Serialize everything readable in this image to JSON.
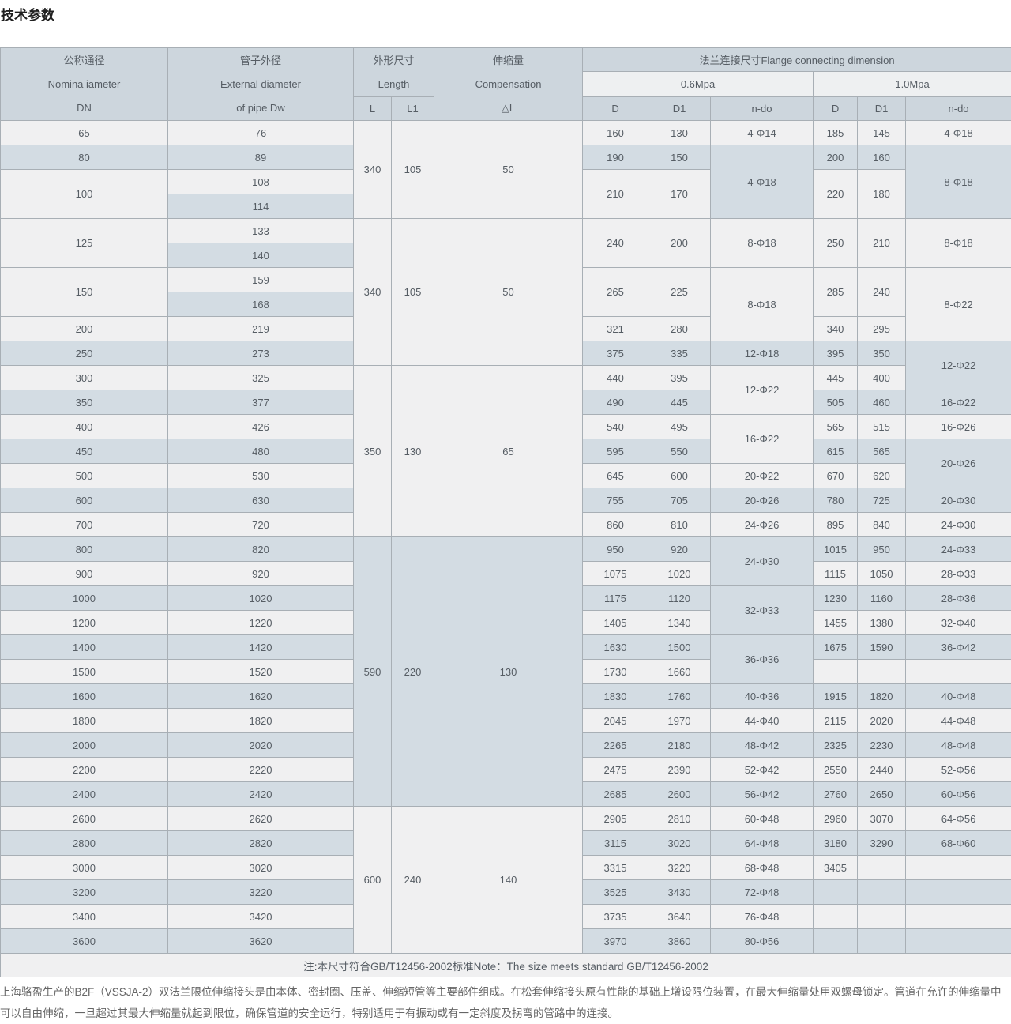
{
  "page": {
    "title": "技术参数"
  },
  "colors": {
    "header_blue": "#cdd6dd",
    "header_light": "#eef0f1",
    "row_light": "#f0f0f1",
    "row_blue": "#d3dce3",
    "border": "#a8afb5",
    "text": "#565d64"
  },
  "table": {
    "header": {
      "dn": [
        "公称通径",
        "Nomina iameter",
        "DN"
      ],
      "dw": [
        "管子外径",
        "External diameter",
        "of pipe Dw"
      ],
      "length": [
        "外形尺寸",
        "Length"
      ],
      "length_cols": [
        "L",
        "L1"
      ],
      "compensation": [
        "伸缩量",
        "Compensation",
        "△L"
      ],
      "flange": "法兰连接尺寸Flange connecting dimension",
      "pressures": [
        "0.6Mpa",
        "1.0Mpa"
      ],
      "dim_cols": [
        "D",
        "D1",
        "n-do"
      ]
    },
    "rows": [
      [
        {
          "n": "dn",
          "v": "65"
        },
        {
          "n": "dw",
          "v": "76"
        },
        {
          "n": "l",
          "v": "340",
          "rs": 4
        },
        {
          "n": "l1",
          "v": "105",
          "rs": 4
        },
        {
          "n": "dl",
          "v": "50",
          "rs": 4
        },
        {
          "n": "d06",
          "v": "160"
        },
        {
          "n": "d106",
          "v": "130"
        },
        {
          "n": "ndo06",
          "v": "4-Φ14"
        },
        {
          "n": "d10",
          "v": "185"
        },
        {
          "n": "d110",
          "v": "145"
        },
        {
          "n": "ndo10",
          "v": "4-Φ18"
        }
      ],
      [
        {
          "n": "dn",
          "v": "80"
        },
        {
          "n": "dw",
          "v": "89"
        },
        {
          "n": "d06",
          "v": "190"
        },
        {
          "n": "d106",
          "v": "150"
        },
        {
          "n": "ndo06",
          "v": "4-Φ18",
          "rs": 3
        },
        {
          "n": "d10",
          "v": "200"
        },
        {
          "n": "d110",
          "v": "160"
        },
        {
          "n": "ndo10",
          "v": "8-Φ18",
          "rs": 3
        }
      ],
      [
        {
          "n": "dn",
          "v": "100",
          "rs": 2
        },
        {
          "n": "dw",
          "v": "108"
        },
        {
          "n": "d06",
          "v": "210",
          "rs": 2
        },
        {
          "n": "d106",
          "v": "170",
          "rs": 2
        },
        {
          "n": "d10",
          "v": "220",
          "rs": 2
        },
        {
          "n": "d110",
          "v": "180",
          "rs": 2
        }
      ],
      [
        {
          "n": "dw",
          "v": "114"
        }
      ],
      [
        {
          "n": "dn",
          "v": "125",
          "rs": 2
        },
        {
          "n": "dw",
          "v": "133"
        },
        {
          "n": "l",
          "v": "340",
          "rs": 6
        },
        {
          "n": "l1",
          "v": "105",
          "rs": 6
        },
        {
          "n": "dl",
          "v": "50",
          "rs": 6
        },
        {
          "n": "d06",
          "v": "240",
          "rs": 2
        },
        {
          "n": "d106",
          "v": "200",
          "rs": 2
        },
        {
          "n": "ndo06",
          "v": "8-Φ18",
          "rs": 2
        },
        {
          "n": "d10",
          "v": "250",
          "rs": 2
        },
        {
          "n": "d110",
          "v": "210",
          "rs": 2
        },
        {
          "n": "ndo10",
          "v": "8-Φ18",
          "rs": 2
        }
      ],
      [
        {
          "n": "dw",
          "v": "140"
        }
      ],
      [
        {
          "n": "dn",
          "v": "150",
          "rs": 2
        },
        {
          "n": "dw",
          "v": "159"
        },
        {
          "n": "d06",
          "v": "265",
          "rs": 2
        },
        {
          "n": "d106",
          "v": "225",
          "rs": 2
        },
        {
          "n": "ndo06",
          "v": "8-Φ18",
          "rs": 3
        },
        {
          "n": "d10",
          "v": "285",
          "rs": 2
        },
        {
          "n": "d110",
          "v": "240",
          "rs": 2
        },
        {
          "n": "ndo10",
          "v": "8-Φ22",
          "rs": 3
        }
      ],
      [
        {
          "n": "dw",
          "v": "168"
        }
      ],
      [
        {
          "n": "dn",
          "v": "200"
        },
        {
          "n": "dw",
          "v": "219"
        },
        {
          "n": "d06",
          "v": "321"
        },
        {
          "n": "d106",
          "v": "280"
        },
        {
          "n": "d10",
          "v": "340"
        },
        {
          "n": "d110",
          "v": "295"
        }
      ],
      [
        {
          "n": "dn",
          "v": "250"
        },
        {
          "n": "dw",
          "v": "273"
        },
        {
          "n": "d06",
          "v": "375"
        },
        {
          "n": "d106",
          "v": "335"
        },
        {
          "n": "ndo06",
          "v": "12-Φ18"
        },
        {
          "n": "d10",
          "v": "395"
        },
        {
          "n": "d110",
          "v": "350"
        },
        {
          "n": "ndo10",
          "v": "12-Φ22",
          "rs": 2
        }
      ],
      [
        {
          "n": "dn",
          "v": "300"
        },
        {
          "n": "dw",
          "v": "325"
        },
        {
          "n": "l",
          "v": "350",
          "rs": 7
        },
        {
          "n": "l1",
          "v": "130",
          "rs": 7
        },
        {
          "n": "dl",
          "v": "65",
          "rs": 7
        },
        {
          "n": "d06",
          "v": "440"
        },
        {
          "n": "d106",
          "v": "395"
        },
        {
          "n": "ndo06",
          "v": "12-Φ22",
          "rs": 2
        },
        {
          "n": "d10",
          "v": "445"
        },
        {
          "n": "d110",
          "v": "400"
        }
      ],
      [
        {
          "n": "dn",
          "v": "350"
        },
        {
          "n": "dw",
          "v": "377"
        },
        {
          "n": "d06",
          "v": "490"
        },
        {
          "n": "d106",
          "v": "445"
        },
        {
          "n": "d10",
          "v": "505"
        },
        {
          "n": "d110",
          "v": "460"
        },
        {
          "n": "ndo10",
          "v": "16-Φ22"
        }
      ],
      [
        {
          "n": "dn",
          "v": "400"
        },
        {
          "n": "dw",
          "v": "426"
        },
        {
          "n": "d06",
          "v": "540"
        },
        {
          "n": "d106",
          "v": "495"
        },
        {
          "n": "ndo06",
          "v": "16-Φ22",
          "rs": 2
        },
        {
          "n": "d10",
          "v": "565"
        },
        {
          "n": "d110",
          "v": "515"
        },
        {
          "n": "ndo10",
          "v": "16-Φ26"
        }
      ],
      [
        {
          "n": "dn",
          "v": "450"
        },
        {
          "n": "dw",
          "v": "480"
        },
        {
          "n": "d06",
          "v": "595"
        },
        {
          "n": "d106",
          "v": "550"
        },
        {
          "n": "d10",
          "v": "615"
        },
        {
          "n": "d110",
          "v": "565"
        },
        {
          "n": "ndo10",
          "v": "20-Φ26",
          "rs": 2
        }
      ],
      [
        {
          "n": "dn",
          "v": "500"
        },
        {
          "n": "dw",
          "v": "530"
        },
        {
          "n": "d06",
          "v": "645"
        },
        {
          "n": "d106",
          "v": "600"
        },
        {
          "n": "ndo06",
          "v": "20-Φ22"
        },
        {
          "n": "d10",
          "v": "670"
        },
        {
          "n": "d110",
          "v": "620"
        }
      ],
      [
        {
          "n": "dn",
          "v": "600"
        },
        {
          "n": "dw",
          "v": "630"
        },
        {
          "n": "d06",
          "v": "755"
        },
        {
          "n": "d106",
          "v": "705"
        },
        {
          "n": "ndo06",
          "v": "20-Φ26"
        },
        {
          "n": "d10",
          "v": "780"
        },
        {
          "n": "d110",
          "v": "725"
        },
        {
          "n": "ndo10",
          "v": "20-Φ30"
        }
      ],
      [
        {
          "n": "dn",
          "v": "700"
        },
        {
          "n": "dw",
          "v": "720"
        },
        {
          "n": "d06",
          "v": "860"
        },
        {
          "n": "d106",
          "v": "810"
        },
        {
          "n": "ndo06",
          "v": "24-Φ26"
        },
        {
          "n": "d10",
          "v": "895"
        },
        {
          "n": "d110",
          "v": "840"
        },
        {
          "n": "ndo10",
          "v": "24-Φ30"
        }
      ],
      [
        {
          "n": "dn",
          "v": "800"
        },
        {
          "n": "dw",
          "v": "820"
        },
        {
          "n": "l",
          "v": "590",
          "rs": 11
        },
        {
          "n": "l1",
          "v": "220",
          "rs": 11
        },
        {
          "n": "dl",
          "v": "130",
          "rs": 11
        },
        {
          "n": "d06",
          "v": "950"
        },
        {
          "n": "d106",
          "v": "920"
        },
        {
          "n": "ndo06",
          "v": "24-Φ30",
          "rs": 2
        },
        {
          "n": "d10",
          "v": "1015"
        },
        {
          "n": "d110",
          "v": "950"
        },
        {
          "n": "ndo10",
          "v": "24-Φ33"
        }
      ],
      [
        {
          "n": "dn",
          "v": "900"
        },
        {
          "n": "dw",
          "v": "920"
        },
        {
          "n": "d06",
          "v": "1075"
        },
        {
          "n": "d106",
          "v": "1020"
        },
        {
          "n": "d10",
          "v": "1115"
        },
        {
          "n": "d110",
          "v": "1050"
        },
        {
          "n": "ndo10",
          "v": "28-Φ33"
        }
      ],
      [
        {
          "n": "dn",
          "v": "1000"
        },
        {
          "n": "dw",
          "v": "1020"
        },
        {
          "n": "d06",
          "v": "1175"
        },
        {
          "n": "d106",
          "v": "1120"
        },
        {
          "n": "ndo06",
          "v": "32-Φ33",
          "rs": 2
        },
        {
          "n": "d10",
          "v": "1230"
        },
        {
          "n": "d110",
          "v": "1160"
        },
        {
          "n": "ndo10",
          "v": "28-Φ36"
        }
      ],
      [
        {
          "n": "dn",
          "v": "1200"
        },
        {
          "n": "dw",
          "v": "1220"
        },
        {
          "n": "d06",
          "v": "1405"
        },
        {
          "n": "d106",
          "v": "1340"
        },
        {
          "n": "d10",
          "v": "1455"
        },
        {
          "n": "d110",
          "v": "1380"
        },
        {
          "n": "ndo10",
          "v": "32-Φ40"
        }
      ],
      [
        {
          "n": "dn",
          "v": "1400"
        },
        {
          "n": "dw",
          "v": "1420"
        },
        {
          "n": "d06",
          "v": "1630"
        },
        {
          "n": "d106",
          "v": "1500"
        },
        {
          "n": "ndo06",
          "v": "36-Φ36",
          "rs": 2
        },
        {
          "n": "d10",
          "v": "1675"
        },
        {
          "n": "d110",
          "v": "1590"
        },
        {
          "n": "ndo10",
          "v": "36-Φ42"
        }
      ],
      [
        {
          "n": "dn",
          "v": "1500"
        },
        {
          "n": "dw",
          "v": "1520"
        },
        {
          "n": "d06",
          "v": "1730"
        },
        {
          "n": "d106",
          "v": "1660"
        },
        {
          "n": "d10",
          "v": ""
        },
        {
          "n": "d110",
          "v": ""
        },
        {
          "n": "ndo10",
          "v": ""
        }
      ],
      [
        {
          "n": "dn",
          "v": "1600"
        },
        {
          "n": "dw",
          "v": "1620"
        },
        {
          "n": "d06",
          "v": "1830"
        },
        {
          "n": "d106",
          "v": "1760"
        },
        {
          "n": "ndo06",
          "v": "40-Φ36"
        },
        {
          "n": "d10",
          "v": "1915"
        },
        {
          "n": "d110",
          "v": "1820"
        },
        {
          "n": "ndo10",
          "v": "40-Φ48"
        }
      ],
      [
        {
          "n": "dn",
          "v": "1800"
        },
        {
          "n": "dw",
          "v": "1820"
        },
        {
          "n": "d06",
          "v": "2045"
        },
        {
          "n": "d106",
          "v": "1970"
        },
        {
          "n": "ndo06",
          "v": "44-Φ40"
        },
        {
          "n": "d10",
          "v": "2115"
        },
        {
          "n": "d110",
          "v": "2020"
        },
        {
          "n": "ndo10",
          "v": "44-Φ48"
        }
      ],
      [
        {
          "n": "dn",
          "v": "2000"
        },
        {
          "n": "dw",
          "v": "2020"
        },
        {
          "n": "d06",
          "v": "2265"
        },
        {
          "n": "d106",
          "v": "2180"
        },
        {
          "n": "ndo06",
          "v": "48-Φ42"
        },
        {
          "n": "d10",
          "v": "2325"
        },
        {
          "n": "d110",
          "v": "2230"
        },
        {
          "n": "ndo10",
          "v": "48-Φ48"
        }
      ],
      [
        {
          "n": "dn",
          "v": "2200"
        },
        {
          "n": "dw",
          "v": "2220"
        },
        {
          "n": "d06",
          "v": "2475"
        },
        {
          "n": "d106",
          "v": "2390"
        },
        {
          "n": "ndo06",
          "v": "52-Φ42"
        },
        {
          "n": "d10",
          "v": "2550"
        },
        {
          "n": "d110",
          "v": "2440"
        },
        {
          "n": "ndo10",
          "v": "52-Φ56"
        }
      ],
      [
        {
          "n": "dn",
          "v": "2400"
        },
        {
          "n": "dw",
          "v": "2420"
        },
        {
          "n": "d06",
          "v": "2685"
        },
        {
          "n": "d106",
          "v": "2600"
        },
        {
          "n": "ndo06",
          "v": "56-Φ42"
        },
        {
          "n": "d10",
          "v": "2760"
        },
        {
          "n": "d110",
          "v": "2650"
        },
        {
          "n": "ndo10",
          "v": "60-Φ56"
        }
      ],
      [
        {
          "n": "dn",
          "v": "2600"
        },
        {
          "n": "dw",
          "v": "2620"
        },
        {
          "n": "l",
          "v": "600",
          "rs": 6
        },
        {
          "n": "l1",
          "v": "240",
          "rs": 6
        },
        {
          "n": "dl",
          "v": "140",
          "rs": 6
        },
        {
          "n": "d06",
          "v": "2905"
        },
        {
          "n": "d106",
          "v": "2810"
        },
        {
          "n": "ndo06",
          "v": "60-Φ48"
        },
        {
          "n": "d10",
          "v": "2960"
        },
        {
          "n": "d110",
          "v": "3070"
        },
        {
          "n": "ndo10",
          "v": "64-Φ56"
        }
      ],
      [
        {
          "n": "dn",
          "v": "2800"
        },
        {
          "n": "dw",
          "v": "2820"
        },
        {
          "n": "d06",
          "v": "3115"
        },
        {
          "n": "d106",
          "v": "3020"
        },
        {
          "n": "ndo06",
          "v": "64-Φ48"
        },
        {
          "n": "d10",
          "v": "3180"
        },
        {
          "n": "d110",
          "v": "3290"
        },
        {
          "n": "ndo10",
          "v": "68-Φ60"
        }
      ],
      [
        {
          "n": "dn",
          "v": "3000"
        },
        {
          "n": "dw",
          "v": "3020"
        },
        {
          "n": "d06",
          "v": "3315"
        },
        {
          "n": "d106",
          "v": "3220"
        },
        {
          "n": "ndo06",
          "v": "68-Φ48"
        },
        {
          "n": "d10",
          "v": "3405"
        },
        {
          "n": "d110",
          "v": ""
        },
        {
          "n": "ndo10",
          "v": ""
        }
      ],
      [
        {
          "n": "dn",
          "v": "3200"
        },
        {
          "n": "dw",
          "v": "3220"
        },
        {
          "n": "d06",
          "v": "3525"
        },
        {
          "n": "d106",
          "v": "3430"
        },
        {
          "n": "ndo06",
          "v": "72-Φ48"
        },
        {
          "n": "d10",
          "v": ""
        },
        {
          "n": "d110",
          "v": ""
        },
        {
          "n": "ndo10",
          "v": ""
        }
      ],
      [
        {
          "n": "dn",
          "v": "3400"
        },
        {
          "n": "dw",
          "v": "3420"
        },
        {
          "n": "d06",
          "v": "3735"
        },
        {
          "n": "d106",
          "v": "3640"
        },
        {
          "n": "ndo06",
          "v": "76-Φ48"
        },
        {
          "n": "d10",
          "v": ""
        },
        {
          "n": "d110",
          "v": ""
        },
        {
          "n": "ndo10",
          "v": ""
        }
      ],
      [
        {
          "n": "dn",
          "v": "3600"
        },
        {
          "n": "dw",
          "v": "3620"
        },
        {
          "n": "d06",
          "v": "3970"
        },
        {
          "n": "d106",
          "v": "3860"
        },
        {
          "n": "ndo06",
          "v": "80-Φ56"
        },
        {
          "n": "d10",
          "v": ""
        },
        {
          "n": "d110",
          "v": ""
        },
        {
          "n": "ndo10",
          "v": ""
        }
      ]
    ],
    "note": "注:本尺寸符合GB/T12456-2002标准Note：The size meets standard GB/T12456-2002"
  },
  "description": {
    "text": "上海骆盈生产的B2F（VSSJA-2）双法兰限位伸缩接头是由本体、密封圈、压盖、伸缩短管等主要部件组成。在松套伸缩接头原有性能的基础上增设限位装置，在最大伸缩量处用双螺母锁定。管道在允许的伸缩量中可以自由伸缩，一旦超过其最大伸缩量就起到限位，确保管道的安全运行，特别适用于有振动或有一定斜度及拐弯的管路中的连接。"
  }
}
